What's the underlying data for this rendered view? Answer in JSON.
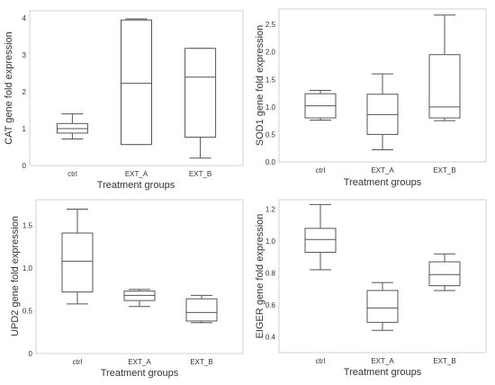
{
  "chart_data": [
    {
      "type": "box",
      "xlabel": "Treatment groups",
      "ylabel": "CAT gene fold expression",
      "ylim": [
        0,
        4.2
      ],
      "yticks": [
        0,
        1,
        2,
        3,
        4
      ],
      "ytick_labels": [
        "0",
        "1",
        "2",
        "3",
        "4"
      ],
      "categories": [
        "ctrl",
        "EXT_A",
        "EXT_B"
      ],
      "boxes": [
        {
          "min": 0.72,
          "q1": 0.88,
          "median": 1.0,
          "q3": 1.14,
          "max": 1.4
        },
        {
          "min": 0.57,
          "q1": 0.57,
          "median": 2.23,
          "q3": 3.95,
          "max": 3.98
        },
        {
          "min": 0.2,
          "q1": 0.77,
          "median": 2.4,
          "q3": 3.18,
          "max": 3.18
        }
      ]
    },
    {
      "type": "box",
      "xlabel": "Treatment groups",
      "ylabel": "SOD1 gene fold expression",
      "ylim": [
        0,
        2.78
      ],
      "yticks": [
        0,
        0.5,
        1,
        1.5,
        2,
        2.5
      ],
      "ytick_labels": [
        "0.0",
        "0.5",
        "1.0",
        "1.5",
        "2.0",
        "2.5"
      ],
      "categories": [
        "ctrl",
        "EXT_A",
        "EXT_B"
      ],
      "boxes": [
        {
          "min": 0.76,
          "q1": 0.8,
          "median": 1.02,
          "q3": 1.24,
          "max": 1.3
        },
        {
          "min": 0.22,
          "q1": 0.5,
          "median": 0.86,
          "q3": 1.23,
          "max": 1.6
        },
        {
          "min": 0.75,
          "q1": 0.8,
          "median": 1.0,
          "q3": 1.95,
          "max": 2.67
        }
      ]
    },
    {
      "type": "box",
      "xlabel": "Treatment groups",
      "ylabel": "UPD2 gene fold expression",
      "ylim": [
        0,
        1.8
      ],
      "yticks": [
        0,
        0.5,
        1,
        1.5
      ],
      "ytick_labels": [
        "0",
        "0.5",
        "1.0",
        "1.5"
      ],
      "categories": [
        "ctrl",
        "EXT_A",
        "EXT_B"
      ],
      "boxes": [
        {
          "min": 0.58,
          "q1": 0.72,
          "median": 1.08,
          "q3": 1.41,
          "max": 1.69
        },
        {
          "min": 0.55,
          "q1": 0.62,
          "median": 0.68,
          "q3": 0.73,
          "max": 0.75
        },
        {
          "min": 0.36,
          "q1": 0.38,
          "median": 0.48,
          "q3": 0.64,
          "max": 0.68
        }
      ]
    },
    {
      "type": "box",
      "xlabel": "Treatment groups",
      "ylabel": "EIGER gene fold expression",
      "ylim": [
        0.3,
        1.26
      ],
      "yticks": [
        0.4,
        0.6,
        0.8,
        1.0,
        1.2
      ],
      "ytick_labels": [
        "0.4",
        "0.6",
        "0.8",
        "1.0",
        "1.2"
      ],
      "categories": [
        "ctrl",
        "EXT_A",
        "EXT_B"
      ],
      "boxes": [
        {
          "min": 0.82,
          "q1": 0.93,
          "median": 1.01,
          "q3": 1.08,
          "max": 1.23
        },
        {
          "min": 0.44,
          "q1": 0.49,
          "median": 0.58,
          "q3": 0.69,
          "max": 0.74
        },
        {
          "min": 0.69,
          "q1": 0.72,
          "median": 0.79,
          "q3": 0.87,
          "max": 0.92
        }
      ]
    }
  ]
}
